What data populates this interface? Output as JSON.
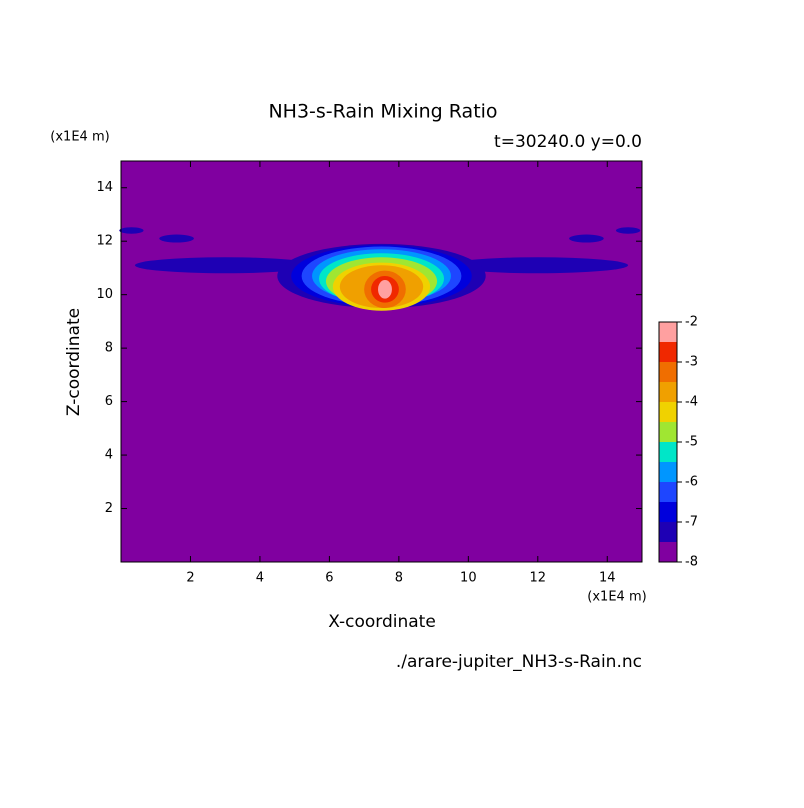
{
  "chart_data": {
    "type": "contour",
    "title": "NH3-s-Rain Mixing Ratio",
    "subtitle": "t=30240.0 y=0.0",
    "x_label": "X-coordinate",
    "y_label": "Z-coordinate",
    "x_unit": "(x1E4 m)",
    "y_unit": "(x1E4 m)",
    "footer": "./arare-jupiter_NH3-s-Rain.nc",
    "xlim": [
      0,
      15
    ],
    "xticks": [
      2,
      4,
      6,
      8,
      10,
      12,
      14
    ],
    "ylim": [
      0,
      15
    ],
    "yticks": [
      2,
      4,
      6,
      8,
      10,
      12,
      14
    ],
    "levels": [
      -8,
      -7.5,
      -7,
      -6.5,
      -6,
      -5.5,
      -5,
      -4.5,
      -4,
      -3.5,
      -3,
      -2.5,
      -2
    ],
    "colors": [
      "#8000a0",
      "#1e00b4",
      "#0000dc",
      "#1e46ff",
      "#0096ff",
      "#00e6c8",
      "#a0e632",
      "#f0d200",
      "#f0a000",
      "#f06e00",
      "#f02800",
      "#ffa0a0"
    ],
    "colorbar_ticks": [
      -8,
      -7,
      -6,
      -5,
      -4,
      -3,
      -2
    ],
    "blobs": [
      {
        "x": 3.0,
        "z": 11.1,
        "rx": 2.6,
        "rz": 0.3,
        "level": -7.5
      },
      {
        "x": 12.0,
        "z": 11.1,
        "rx": 2.6,
        "rz": 0.3,
        "level": -7.5
      },
      {
        "x": 0.3,
        "z": 12.4,
        "rx": 0.35,
        "rz": 0.12,
        "level": -7.5
      },
      {
        "x": 1.6,
        "z": 12.1,
        "rx": 0.5,
        "rz": 0.15,
        "level": -7.5
      },
      {
        "x": 13.4,
        "z": 12.1,
        "rx": 0.5,
        "rz": 0.15,
        "level": -7.5
      },
      {
        "x": 14.6,
        "z": 12.4,
        "rx": 0.35,
        "rz": 0.12,
        "level": -7.5
      },
      {
        "x": 7.5,
        "z": 10.7,
        "rx": 3.0,
        "rz": 1.2,
        "level": -7.5
      },
      {
        "x": 7.5,
        "z": 10.7,
        "rx": 2.6,
        "rz": 1.15,
        "level": -7
      },
      {
        "x": 7.5,
        "z": 10.7,
        "rx": 2.3,
        "rz": 1.1,
        "level": -6.5
      },
      {
        "x": 7.5,
        "z": 10.7,
        "rx": 2.0,
        "rz": 1.0,
        "level": -6
      },
      {
        "x": 7.5,
        "z": 10.6,
        "rx": 1.8,
        "rz": 0.95,
        "level": -5.5
      },
      {
        "x": 7.5,
        "z": 10.5,
        "rx": 1.6,
        "rz": 0.9,
        "level": -5
      },
      {
        "x": 7.5,
        "z": 10.3,
        "rx": 1.4,
        "rz": 0.9,
        "level": -4.5
      },
      {
        "x": 7.5,
        "z": 10.3,
        "rx": 1.2,
        "rz": 0.8,
        "level": -4
      },
      {
        "x": 7.6,
        "z": 10.2,
        "rx": 0.6,
        "rz": 0.7,
        "level": -3.5
      },
      {
        "x": 7.6,
        "z": 10.2,
        "rx": 0.4,
        "rz": 0.5,
        "level": -3
      },
      {
        "x": 7.6,
        "z": 10.2,
        "rx": 0.2,
        "rz": 0.35,
        "level": -2.5
      }
    ]
  }
}
